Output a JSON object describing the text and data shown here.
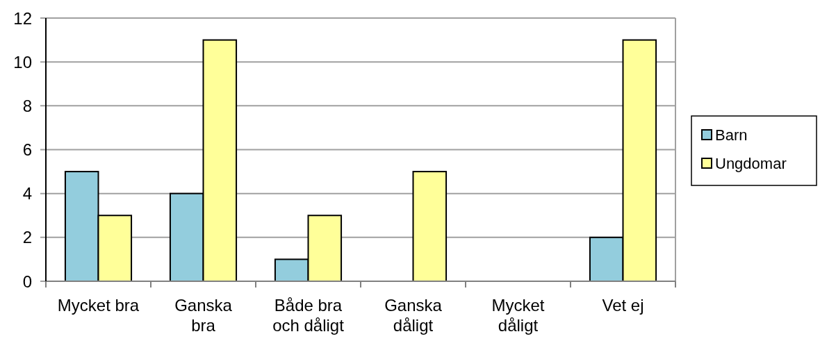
{
  "chart_data": {
    "type": "bar",
    "categories": [
      "Mycket bra",
      "Ganska bra",
      "Både bra och dåligt",
      "Ganska dåligt",
      "Mycket dåligt",
      "Vet ej"
    ],
    "series": [
      {
        "name": "Barn",
        "color": "#93cddd",
        "values": [
          5,
          4,
          1,
          0,
          0,
          2
        ]
      },
      {
        "name": "Ungdomar",
        "color": "#ffff99",
        "values": [
          3,
          11,
          3,
          5,
          0,
          11
        ]
      }
    ],
    "ylim": [
      0,
      12
    ],
    "yticks": [
      0,
      2,
      4,
      6,
      8,
      10,
      12
    ],
    "grid": "y",
    "legend": "right"
  }
}
